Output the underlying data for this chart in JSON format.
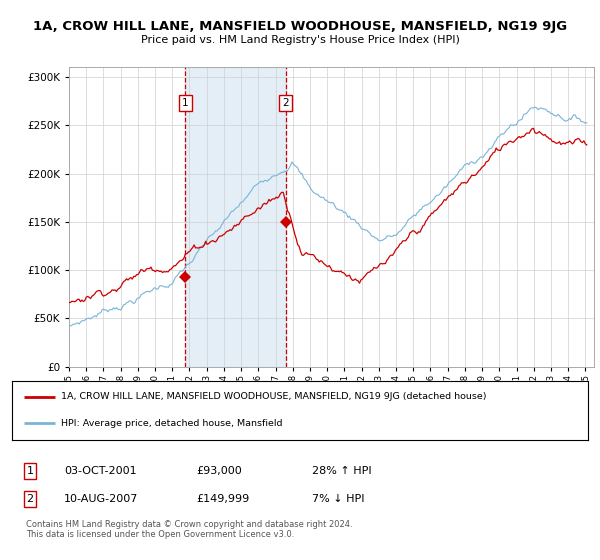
{
  "title": "1A, CROW HILL LANE, MANSFIELD WOODHOUSE, MANSFIELD, NG19 9JG",
  "subtitle": "Price paid vs. HM Land Registry's House Price Index (HPI)",
  "legend_line1": "1A, CROW HILL LANE, MANSFIELD WOODHOUSE, MANSFIELD, NG19 9JG (detached house)",
  "legend_line2": "HPI: Average price, detached house, Mansfield",
  "sale1_date": "03-OCT-2001",
  "sale1_price": "£93,000",
  "sale1_hpi": "28% ↑ HPI",
  "sale2_date": "10-AUG-2007",
  "sale2_price": "£149,999",
  "sale2_hpi": "7% ↓ HPI",
  "footer": "Contains HM Land Registry data © Crown copyright and database right 2024.\nThis data is licensed under the Open Government Licence v3.0.",
  "hpi_color": "#7ab4d8",
  "price_color": "#cc0000",
  "sale1_x": 2001.75,
  "sale1_y": 93000,
  "sale2_x": 2007.58,
  "sale2_y": 149999,
  "vline1_x": 2001.75,
  "vline2_x": 2007.58,
  "xmin": 1995,
  "xmax": 2025.5,
  "ymin": 0,
  "ymax": 310000,
  "yticks": [
    0,
    50000,
    100000,
    150000,
    200000,
    250000,
    300000
  ],
  "ytick_labels": [
    "£0",
    "£50K",
    "£100K",
    "£150K",
    "£200K",
    "£250K",
    "£300K"
  ]
}
